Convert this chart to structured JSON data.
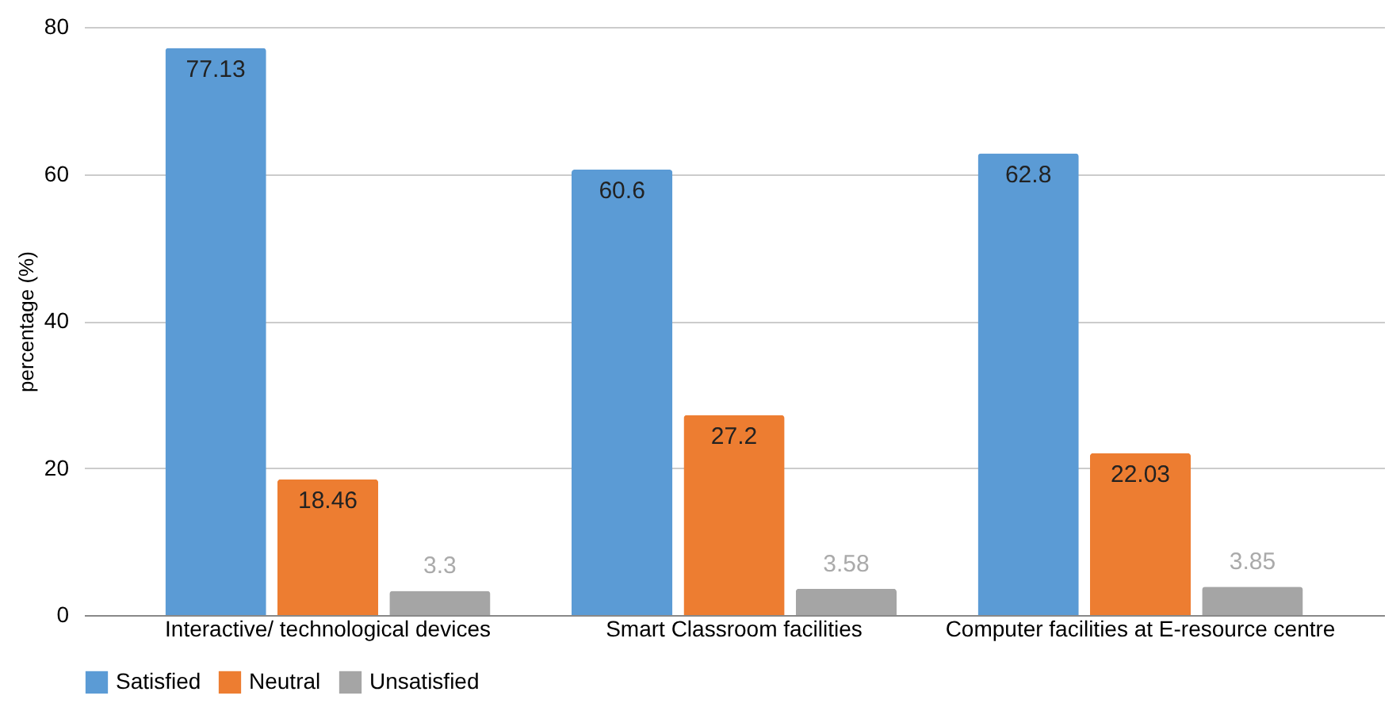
{
  "chart_data": {
    "type": "bar",
    "ylabel": "percentage (%)",
    "categories": [
      "Interactive/ technological devices",
      "Smart Classroom facilities",
      "Computer facilities at E-resource centre"
    ],
    "series": [
      {
        "name": "Satisfied",
        "color": "#5b9bd5",
        "values": [
          77.13,
          60.6,
          62.8
        ]
      },
      {
        "name": "Neutral",
        "color": "#ed7d31",
        "values": [
          18.46,
          27.2,
          22.03
        ]
      },
      {
        "name": "Unsatisfied",
        "color": "#a5a5a5",
        "values": [
          3.3,
          3.58,
          3.85
        ]
      }
    ],
    "ylim": [
      0,
      80
    ],
    "yticks": [
      0,
      20,
      40,
      60,
      80
    ],
    "grid": "y",
    "legend": "bottom",
    "data_labels": true
  }
}
